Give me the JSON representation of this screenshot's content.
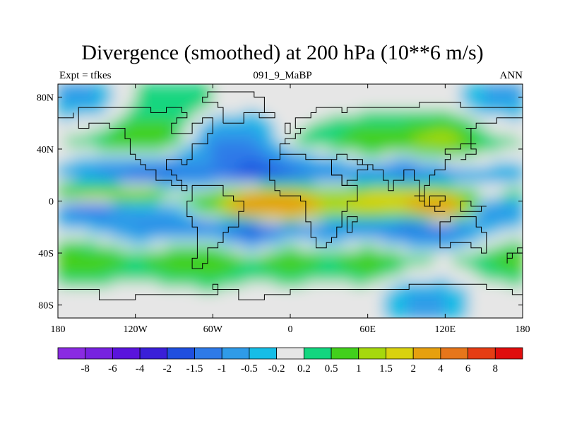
{
  "chart_data": {
    "type": "heatmap",
    "title": "Divergence (smoothed) at 200 hPa (10**6 m/s)",
    "subtitle_left": "Expt = tfkes",
    "subtitle_center": "091_9_MaBP",
    "subtitle_right": "ANN",
    "x_tick_labels": [
      "180",
      "120W",
      "60W",
      "0",
      "60E",
      "120E",
      "180"
    ],
    "x_tick_values": [
      -180,
      -120,
      -60,
      0,
      60,
      120,
      180
    ],
    "y_tick_labels": [
      "80N",
      "40N",
      "0",
      "40S",
      "80S"
    ],
    "y_tick_values": [
      80,
      40,
      0,
      -40,
      -80
    ],
    "xlim": [
      -180,
      180
    ],
    "ylim": [
      -90,
      90
    ],
    "colorbar": {
      "levels": [
        "-8",
        "-6",
        "-4",
        "-2",
        "-1.5",
        "-1",
        "-0.5",
        "-0.2",
        "0.2",
        "0.5",
        "1",
        "1.5",
        "2",
        "4",
        "6",
        "8"
      ],
      "colors": [
        "#8a2be2",
        "#7722e0",
        "#5a14dc",
        "#3a1fd8",
        "#1f4fdf",
        "#2e7ae8",
        "#2f9be8",
        "#16bde6",
        "#e6e6e6",
        "#13d67f",
        "#42d01c",
        "#a6d80d",
        "#d9d20f",
        "#e6a00f",
        "#e6761a",
        "#e53d14",
        "#e00d0d"
      ]
    },
    "data_grid": {
      "lon": [
        -180,
        -150,
        -120,
        -90,
        -60,
        -30,
        0,
        30,
        60,
        90,
        120,
        150,
        180
      ],
      "lat": [
        75,
        45,
        20,
        5,
        -5,
        -20,
        -45,
        -70
      ],
      "values": [
        [
          -0.5,
          -0.5,
          0.2,
          0.5,
          0.2,
          0.0,
          0.0,
          0.0,
          0.0,
          0.0,
          0.0,
          -0.5,
          -0.5
        ],
        [
          0.2,
          0.5,
          1.0,
          0.5,
          -1.0,
          -1.0,
          0.2,
          0.5,
          1.0,
          1.0,
          1.5,
          0.5,
          0.2
        ],
        [
          -0.5,
          -1.0,
          -1.5,
          -1.5,
          -1.0,
          -2.0,
          -1.5,
          -1.0,
          -1.0,
          -1.5,
          -1.0,
          -0.5,
          -0.5
        ],
        [
          1.0,
          1.5,
          1.5,
          0.5,
          0.5,
          2.0,
          2.0,
          1.0,
          1.5,
          2.0,
          1.5,
          0.2,
          0.5
        ],
        [
          -1.0,
          -1.5,
          -0.5,
          -0.5,
          1.0,
          4.0,
          4.0,
          1.5,
          2.0,
          2.0,
          4.0,
          -1.0,
          -1.0
        ],
        [
          -0.2,
          -0.5,
          -1.0,
          -1.0,
          -1.0,
          -2.0,
          -1.0,
          -1.0,
          -1.0,
          -1.5,
          -1.5,
          -0.5,
          -0.2
        ],
        [
          1.0,
          1.0,
          0.5,
          1.0,
          1.0,
          0.5,
          1.0,
          0.5,
          1.0,
          0.5,
          0.2,
          0.5,
          1.0
        ],
        [
          0.0,
          0.0,
          0.0,
          0.0,
          0.2,
          0.0,
          0.0,
          0.0,
          0.0,
          -0.5,
          -0.5,
          0.0,
          0.0
        ]
      ]
    }
  }
}
